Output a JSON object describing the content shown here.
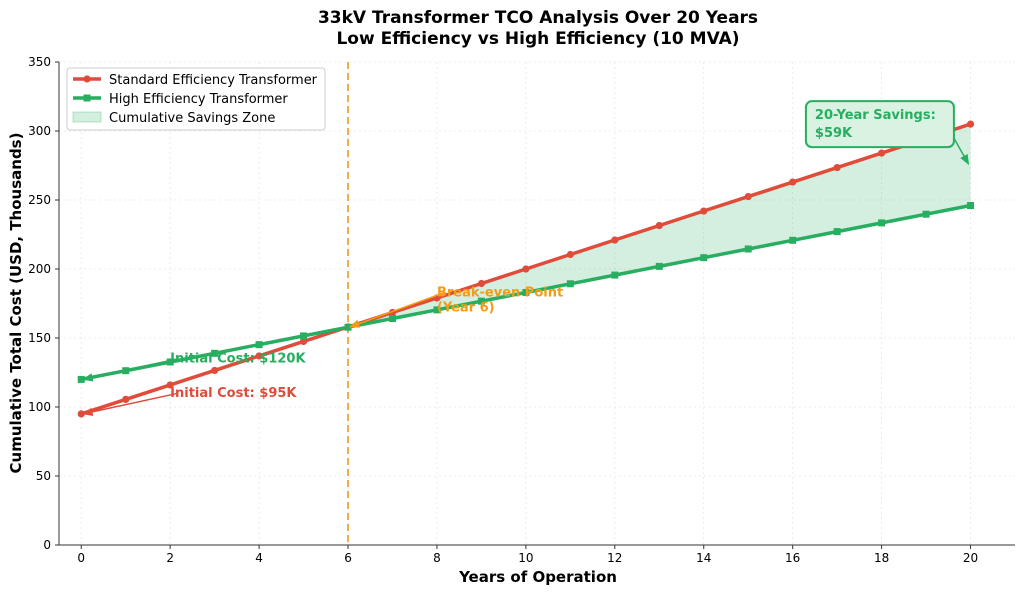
{
  "chart_data": {
    "type": "line",
    "title": "33kV Transformer TCO Analysis Over 20 Years",
    "subtitle": "Low Efficiency vs High Efficiency (10 MVA)",
    "xlabel": "Years of Operation",
    "ylabel": "Cumulative Total Cost (USD, Thousands)",
    "xlim": [
      -0.5,
      21
    ],
    "ylim": [
      0,
      350
    ],
    "xticks": [
      0,
      2,
      4,
      6,
      8,
      10,
      12,
      14,
      16,
      18,
      20
    ],
    "yticks": [
      0,
      50,
      100,
      150,
      200,
      250,
      300,
      350
    ],
    "grid": true,
    "legend_position": "top-left",
    "x": [
      0,
      1,
      2,
      3,
      4,
      5,
      6,
      7,
      8,
      9,
      10,
      11,
      12,
      13,
      14,
      15,
      16,
      17,
      18,
      19,
      20
    ],
    "series": [
      {
        "name": "Standard Efficiency Transformer",
        "color": "#e04b3a",
        "marker": "circle",
        "values": [
          95,
          105.5,
          116,
          126.5,
          137,
          147.5,
          158,
          168.5,
          179,
          189.5,
          200,
          210.5,
          221,
          231.5,
          242,
          252.5,
          263,
          273.5,
          284,
          294.5,
          305
        ]
      },
      {
        "name": "High Efficiency Transformer",
        "color": "#27ae60",
        "marker": "square",
        "values": [
          120,
          126.3,
          132.6,
          138.9,
          145.2,
          151.5,
          157.8,
          164.1,
          170.4,
          176.7,
          183,
          189.3,
          195.6,
          201.9,
          208.2,
          214.5,
          220.8,
          227.1,
          233.4,
          239.7,
          246
        ]
      }
    ],
    "fill": {
      "name": "Cumulative Savings Zone",
      "color": "#27ae60",
      "from_x": 6
    },
    "vline": {
      "x": 6,
      "color": "#f0ad4e"
    },
    "annotations": [
      {
        "id": "breakeven",
        "text": "Break-even Point",
        "text2": "(Year 6)",
        "color": "#f39c12",
        "x": 6,
        "y": 158,
        "tx": 8,
        "ty": 183
      },
      {
        "id": "init-high",
        "text": "Initial Cost: $120K",
        "color": "#27ae60",
        "x": 0,
        "y": 120,
        "tx": 2,
        "ty": 135
      },
      {
        "id": "init-std",
        "text": "Initial Cost: $95K",
        "color": "#e04b3a",
        "x": 0,
        "y": 95,
        "tx": 2,
        "ty": 110
      },
      {
        "id": "savings",
        "text": "20-Year Savings:",
        "text2": "$59K",
        "color": "#27ae60",
        "x": 20,
        "y": 276,
        "tx": 16.5,
        "ty": 297
      }
    ]
  }
}
